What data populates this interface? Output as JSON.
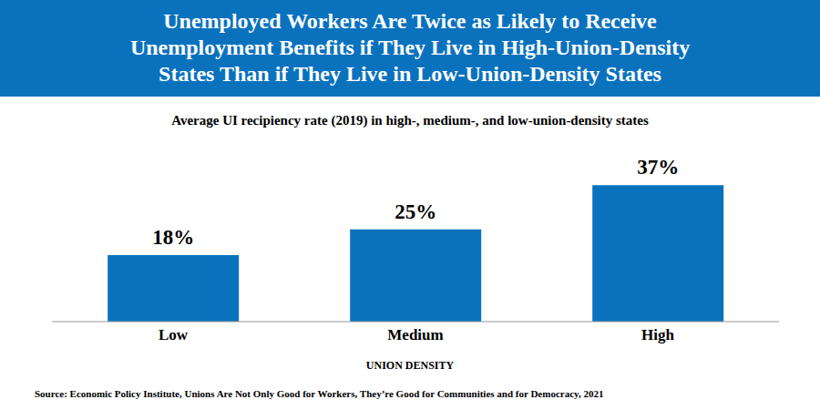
{
  "chart_data": {
    "type": "bar",
    "title": "Unemployed Workers Are Twice as Likely to Receive\nUnemployment Benefits if They Live in High-Union-Density\nStates Than if They Live in Low-Union-Density States",
    "subtitle": "Average UI recipiency rate (2019) in high-, medium-, and low-union-density states",
    "x_label": "UNION DENSITY",
    "source": "Source: Economic Policy Institute, Unions Are Not Only Good for Workers, They’re Good for Communities and for Democracy, 2021",
    "categories": [
      "Low",
      "Medium",
      "High"
    ],
    "values": [
      18,
      25,
      37
    ],
    "value_labels": [
      "18%",
      "25%",
      "37%"
    ],
    "color": "#0a72bd",
    "ylim": [
      0,
      40
    ],
    "grid": false,
    "data_labels": true,
    "tick_labels": "x"
  }
}
